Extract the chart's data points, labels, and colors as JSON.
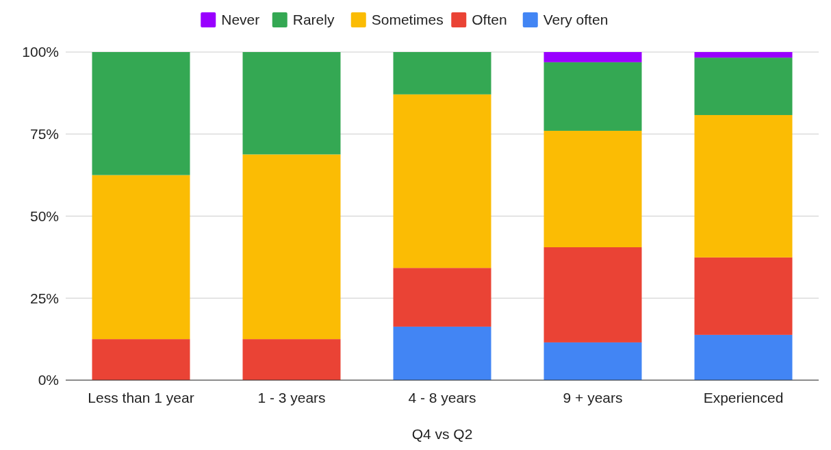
{
  "chart_data": {
    "type": "bar",
    "stacked": true,
    "xlabel": "Q4 vs Q2",
    "categories": [
      "Less than 1 year",
      "1 - 3 years",
      "4 - 8 years",
      "9 + years",
      "Experienced"
    ],
    "series": [
      {
        "name": "Very often",
        "color": "#4285f4",
        "values": [
          0,
          0,
          16.3,
          11.5,
          13.8
        ]
      },
      {
        "name": "Often",
        "color": "#ea4335",
        "values": [
          12.5,
          12.5,
          17.9,
          29.0,
          23.6
        ]
      },
      {
        "name": "Sometimes",
        "color": "#fbbc04",
        "values": [
          50,
          56.3,
          52.9,
          35.5,
          43.4
        ]
      },
      {
        "name": "Rarely",
        "color": "#34a853",
        "values": [
          37.5,
          31.2,
          12.9,
          20.9,
          17.5
        ]
      },
      {
        "name": "Never",
        "color": "#9900ff",
        "values": [
          0,
          0,
          0,
          3.1,
          1.7
        ]
      }
    ],
    "ylim": [
      0,
      100
    ],
    "yticks": [
      {
        "value": 0,
        "label": "0%"
      },
      {
        "value": 25,
        "label": "25%"
      },
      {
        "value": 50,
        "label": "50%"
      },
      {
        "value": 75,
        "label": "75%"
      },
      {
        "value": 100,
        "label": "100%"
      }
    ],
    "grid": "y",
    "legend": "top"
  }
}
